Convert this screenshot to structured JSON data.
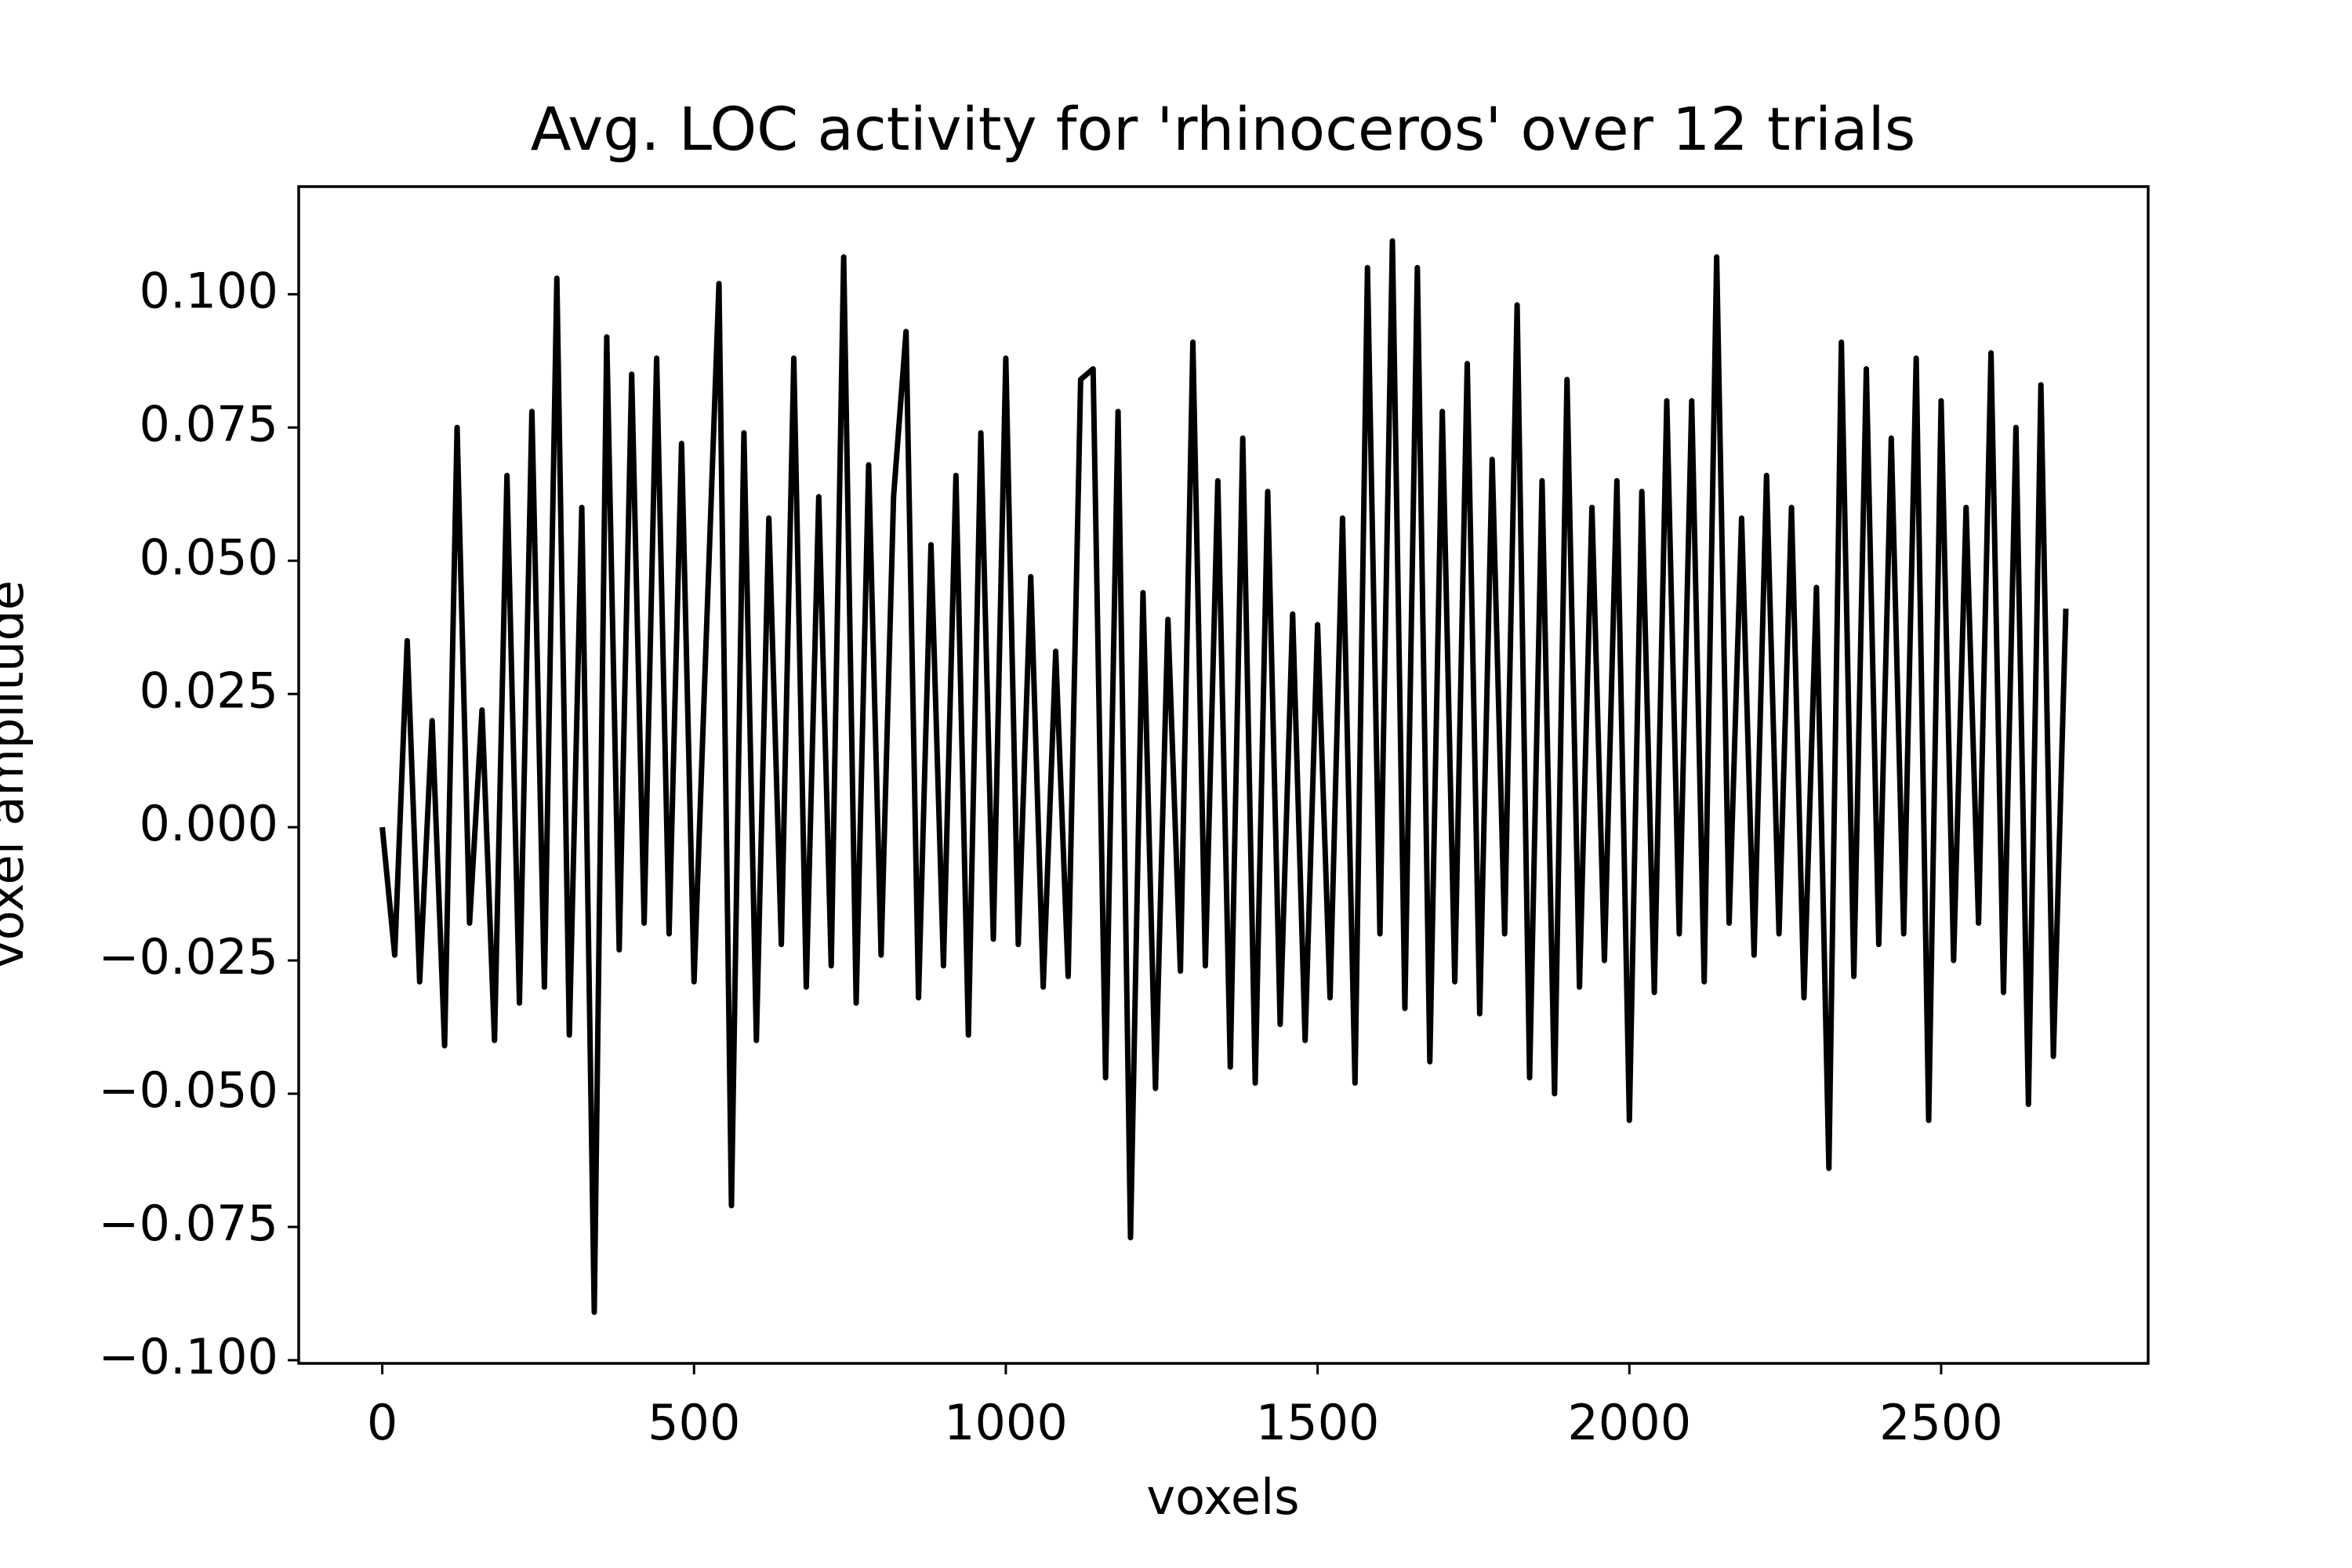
{
  "chart_data": {
    "type": "line",
    "title": "Avg. LOC activity for 'rhinoceros' over 12 trials",
    "xlabel": "voxels",
    "ylabel": "voxel amplitude",
    "color": "#000000",
    "x": [
      0,
      20,
      40,
      60,
      80,
      100,
      120,
      140,
      160,
      180,
      200,
      220,
      240,
      260,
      280,
      300,
      320,
      340,
      360,
      380,
      400,
      420,
      440,
      460,
      480,
      500,
      520,
      540,
      560,
      580,
      600,
      620,
      640,
      660,
      680,
      700,
      720,
      740,
      760,
      780,
      800,
      820,
      840,
      860,
      880,
      900,
      920,
      940,
      960,
      980,
      1000,
      1020,
      1040,
      1060,
      1080,
      1100,
      1120,
      1140,
      1160,
      1180,
      1200,
      1220,
      1240,
      1260,
      1280,
      1300,
      1320,
      1340,
      1360,
      1380,
      1400,
      1420,
      1440,
      1460,
      1480,
      1500,
      1520,
      1540,
      1560,
      1580,
      1600,
      1620,
      1640,
      1660,
      1680,
      1700,
      1720,
      1740,
      1760,
      1780,
      1800,
      1820,
      1840,
      1860,
      1880,
      1900,
      1920,
      1940,
      1960,
      1980,
      2000,
      2020,
      2040,
      2060,
      2080,
      2100,
      2120,
      2140,
      2160,
      2180,
      2200,
      2220,
      2240,
      2260,
      2280,
      2300,
      2320,
      2340,
      2360,
      2380,
      2400,
      2420,
      2440,
      2460,
      2480,
      2500,
      2520,
      2540,
      2560,
      2580,
      2600,
      2620,
      2640,
      2660,
      2680,
      2700
    ],
    "values": [
      0.0,
      -0.024,
      0.035,
      -0.029,
      0.02,
      -0.041,
      0.075,
      -0.018,
      0.022,
      -0.04,
      0.066,
      -0.033,
      0.078,
      -0.03,
      0.103,
      -0.039,
      0.06,
      -0.091,
      0.092,
      -0.023,
      0.085,
      -0.018,
      0.088,
      -0.02,
      0.072,
      -0.029,
      0.037,
      0.102,
      -0.071,
      0.074,
      -0.04,
      0.058,
      -0.022,
      0.088,
      -0.03,
      0.062,
      -0.026,
      0.107,
      -0.033,
      0.068,
      -0.024,
      0.062,
      0.093,
      -0.032,
      0.053,
      -0.026,
      0.066,
      -0.039,
      0.074,
      -0.021,
      0.088,
      -0.022,
      0.047,
      -0.03,
      0.033,
      -0.028,
      0.084,
      0.086,
      -0.047,
      0.078,
      -0.077,
      0.044,
      -0.049,
      0.039,
      -0.027,
      0.091,
      -0.026,
      0.065,
      -0.045,
      0.073,
      -0.048,
      0.063,
      -0.037,
      0.04,
      -0.04,
      0.038,
      -0.032,
      0.058,
      -0.048,
      0.105,
      -0.02,
      0.11,
      -0.034,
      0.105,
      -0.044,
      0.078,
      -0.029,
      0.087,
      -0.035,
      0.069,
      -0.02,
      0.098,
      -0.047,
      0.065,
      -0.05,
      0.084,
      -0.03,
      0.06,
      -0.025,
      0.065,
      -0.055,
      0.063,
      -0.031,
      0.08,
      -0.02,
      0.08,
      -0.029,
      0.107,
      -0.018,
      0.058,
      -0.024,
      0.066,
      -0.02,
      0.06,
      -0.032,
      0.045,
      -0.064,
      0.091,
      -0.028,
      0.086,
      -0.022,
      0.073,
      -0.02,
      0.088,
      -0.055,
      0.08,
      -0.025,
      0.06,
      -0.018,
      0.089,
      -0.031,
      0.075,
      -0.052,
      0.083,
      -0.043,
      0.041
    ],
    "xlim": [
      -134,
      2832
    ],
    "xticks": [
      0,
      500,
      1000,
      1500,
      2000,
      2500
    ],
    "ylim": [
      -0.1006,
      0.1202
    ],
    "yticks": [
      {
        "value": -0.1,
        "label": "−0.100"
      },
      {
        "value": -0.075,
        "label": "−0.075"
      },
      {
        "value": -0.05,
        "label": "−0.050"
      },
      {
        "value": -0.025,
        "label": "−0.025"
      },
      {
        "value": 0,
        "label": "0.000"
      },
      {
        "value": 0.025,
        "label": "0.025"
      },
      {
        "value": 0.05,
        "label": "0.050"
      },
      {
        "value": 0.075,
        "label": "0.075"
      },
      {
        "value": 0.1,
        "label": "0.100"
      }
    ]
  }
}
